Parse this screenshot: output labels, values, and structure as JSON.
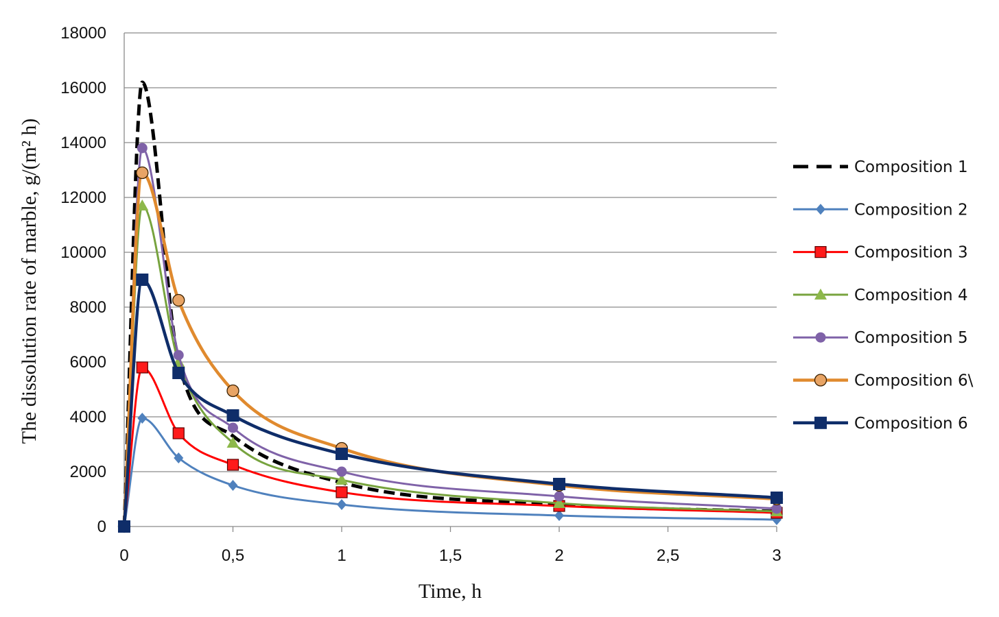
{
  "chart_data": {
    "type": "line",
    "xlabel": "Time,  h",
    "ylabel": "The dissolution  rate of marble,  g/(m² h)",
    "xlim": [
      0,
      3
    ],
    "ylim": [
      0,
      18000
    ],
    "x_ticks": [
      "0",
      "0,5",
      "1",
      "1,5",
      "2",
      "2,5",
      "3"
    ],
    "x_tick_values": [
      0,
      0.5,
      1,
      1.5,
      2,
      2.5,
      3
    ],
    "y_ticks": [
      "0",
      "2000",
      "4000",
      "6000",
      "8000",
      "10000",
      "12000",
      "14000",
      "16000",
      "18000"
    ],
    "y_tick_values": [
      0,
      2000,
      4000,
      6000,
      8000,
      10000,
      12000,
      14000,
      16000,
      18000
    ],
    "grid": "horizontal",
    "legend_position": "right",
    "series": [
      {
        "name": "Composition 1",
        "color": "#000000",
        "dashed": true,
        "marker": "none",
        "x": [
          0,
          0.083,
          0.25,
          0.5,
          1,
          2,
          3
        ],
        "y": [
          0,
          16200,
          6000,
          3300,
          1600,
          800,
          550
        ]
      },
      {
        "name": "Composition 2",
        "color": "#4F81BD",
        "dashed": false,
        "marker": "diamond",
        "x": [
          0,
          0.083,
          0.25,
          0.5,
          1,
          2,
          3
        ],
        "y": [
          0,
          3950,
          2500,
          1500,
          800,
          400,
          250
        ]
      },
      {
        "name": "Composition 3",
        "color": "#FF0000",
        "dashed": false,
        "marker": "square-red",
        "x": [
          0,
          0.083,
          0.25,
          0.5,
          1,
          2,
          3
        ],
        "y": [
          0,
          5800,
          3400,
          2250,
          1250,
          750,
          500
        ]
      },
      {
        "name": "Composition 4",
        "color": "#77A33E",
        "dashed": false,
        "marker": "triangle",
        "x": [
          0,
          0.083,
          0.25,
          0.5,
          1,
          2,
          3
        ],
        "y": [
          0,
          11700,
          6000,
          3050,
          1700,
          850,
          550
        ]
      },
      {
        "name": "Composition 5",
        "color": "#7F62A8",
        "dashed": false,
        "marker": "circle-filled",
        "x": [
          0,
          0.083,
          0.25,
          0.5,
          1,
          2,
          3
        ],
        "y": [
          0,
          13800,
          6250,
          3600,
          2000,
          1100,
          650
        ]
      },
      {
        "name": "Composition 6\\",
        "color": "#E08A2E",
        "dashed": false,
        "marker": "circle-open",
        "x": [
          0,
          0.083,
          0.25,
          0.5,
          1,
          2,
          3
        ],
        "y": [
          0,
          12900,
          8250,
          4950,
          2850,
          1500,
          1000
        ]
      },
      {
        "name": "Composition 6",
        "color": "#0F2D69",
        "dashed": false,
        "marker": "square-navy",
        "x": [
          0,
          0.083,
          0.25,
          0.5,
          1,
          2,
          3
        ],
        "y": [
          0,
          9000,
          5600,
          4050,
          2650,
          1550,
          1050
        ]
      }
    ]
  }
}
